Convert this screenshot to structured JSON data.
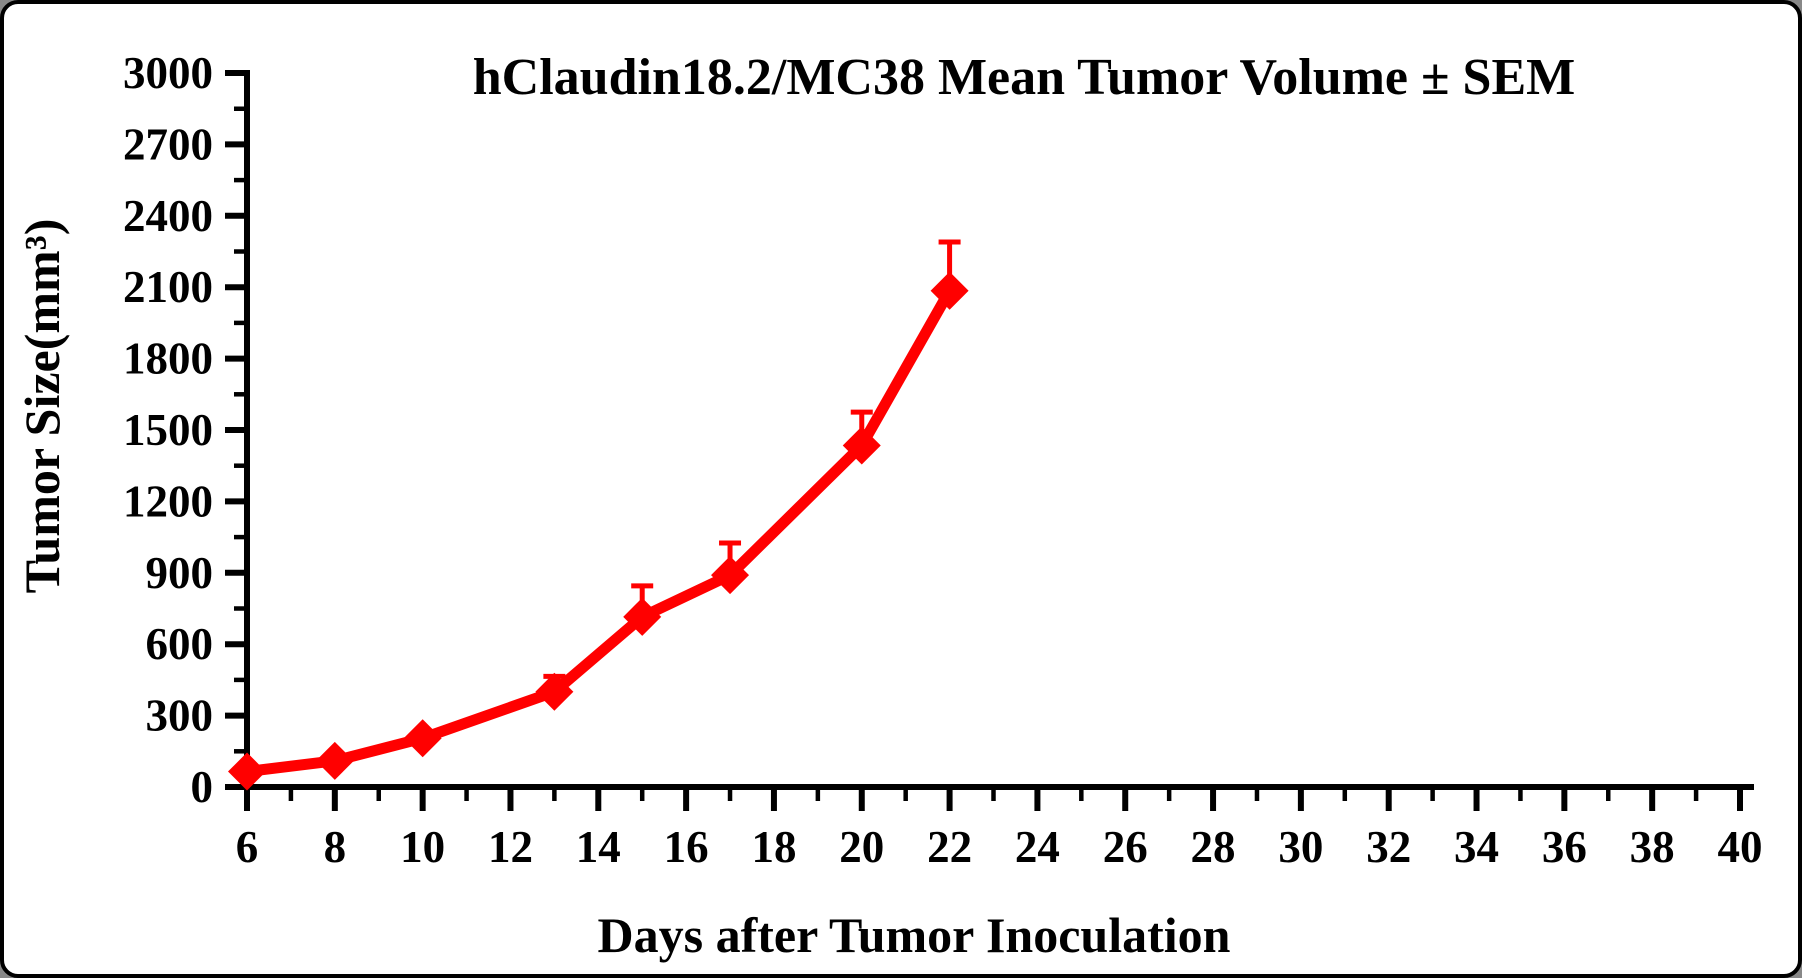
{
  "figure": {
    "background": "#ffffff",
    "border_color": "#000000",
    "axis_color": "#000000",
    "text_color": "#000000"
  },
  "chart_data": {
    "type": "line",
    "title": "hClaudin18.2/MC38 Mean Tumor Volume ± SEM",
    "xlabel": "Days after Tumor Inoculation",
    "ylabel": "Tumor Size(mm³)",
    "xlim": [
      6,
      40
    ],
    "ylim": [
      0,
      3000
    ],
    "x_major_ticks": [
      6,
      8,
      10,
      12,
      14,
      16,
      18,
      20,
      22,
      24,
      26,
      28,
      30,
      32,
      34,
      36,
      38,
      40
    ],
    "x_minor_step": 1,
    "y_major_ticks": [
      0,
      300,
      600,
      900,
      1200,
      1500,
      1800,
      2100,
      2400,
      2700,
      3000
    ],
    "y_minor_step": 150,
    "grid": false,
    "legend": "none",
    "x": [
      6,
      8,
      10,
      13,
      15,
      17,
      20,
      22
    ],
    "series": [
      {
        "name": "hClaudin18.2/MC38 mean tumor volume",
        "color": "#ff0000",
        "marker": "diamond",
        "values": [
          65,
          110,
          205,
          400,
          715,
          890,
          1435,
          2085
        ],
        "sem_upper": [
          0,
          0,
          0,
          65,
          130,
          135,
          140,
          205
        ]
      }
    ]
  }
}
